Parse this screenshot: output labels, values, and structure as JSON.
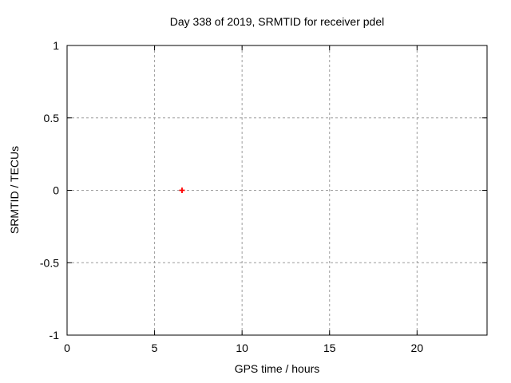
{
  "chart_data": {
    "type": "scatter",
    "title": "Day 338 of 2019, SRMTID for receiver pdel",
    "xlabel": "GPS time / hours",
    "ylabel": "SRMTID / TECUs",
    "xlim": [
      0,
      24
    ],
    "ylim": [
      -1,
      1
    ],
    "xticks": [
      0,
      5,
      10,
      15,
      20
    ],
    "xtick_labels": [
      "0",
      "5",
      "10",
      "15",
      "20"
    ],
    "yticks": [
      -1,
      -0.5,
      0,
      0.5,
      1
    ],
    "ytick_labels": [
      "-1",
      "-0.5",
      "0",
      "0.5",
      "1"
    ],
    "grid": true,
    "legend": "none",
    "series": [
      {
        "name": "SRMTID",
        "marker": "plus",
        "color": "#ff0000",
        "points": [
          {
            "x": 6.57,
            "y": 0.0
          }
        ]
      }
    ],
    "colors": {
      "grid": "#9c9c9c",
      "axis": "#000000",
      "text": "#000000",
      "background": "#ffffff"
    }
  }
}
